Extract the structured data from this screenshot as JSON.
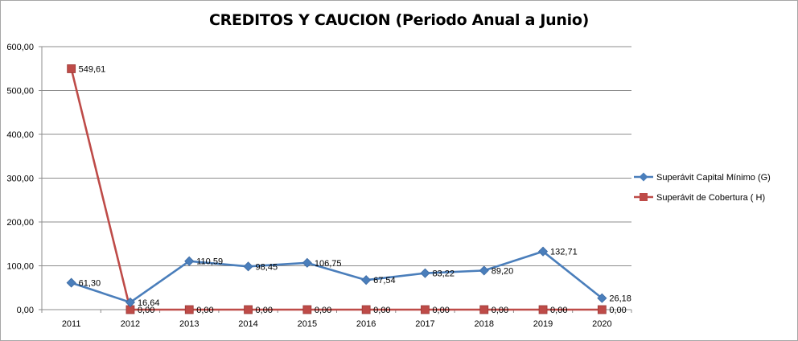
{
  "chart_data": {
    "type": "line",
    "title": "CREDITOS Y CAUCION (Periodo Anual a Junio)",
    "xlabel": "",
    "ylabel": "",
    "categories": [
      "2011",
      "2012",
      "2013",
      "2014",
      "2015",
      "2016",
      "2017",
      "2018",
      "2019",
      "2020"
    ],
    "ylim": [
      0,
      600
    ],
    "yticks": [
      0,
      100,
      200,
      300,
      400,
      500,
      600
    ],
    "ytick_labels": [
      "0,00",
      "100,00",
      "200,00",
      "300,00",
      "400,00",
      "500,00",
      "600,00"
    ],
    "grid": true,
    "legend_position": "right",
    "series": [
      {
        "name": "Superávit Capital Mínimo  (G)",
        "color": "#4a7ebb",
        "marker": "diamond",
        "values": [
          61.3,
          16.64,
          110.59,
          98.45,
          106.75,
          67.54,
          83.22,
          89.2,
          132.71,
          26.18
        ],
        "labels": [
          "61,30",
          "16,64",
          "110,59",
          "98,45",
          "106,75",
          "67,54",
          "83,22",
          "89,20",
          "132,71",
          "26,18"
        ]
      },
      {
        "name": "Superávit de Cobertura ( H)",
        "color": "#be4b48",
        "marker": "square",
        "values": [
          549.61,
          0,
          0,
          0,
          0,
          0,
          0,
          0,
          0,
          0
        ],
        "labels": [
          "549,61",
          "0,00",
          "0,00",
          "0,00",
          "0,00",
          "0,00",
          "0,00",
          "0,00",
          "0,00",
          "0,00"
        ]
      }
    ]
  }
}
